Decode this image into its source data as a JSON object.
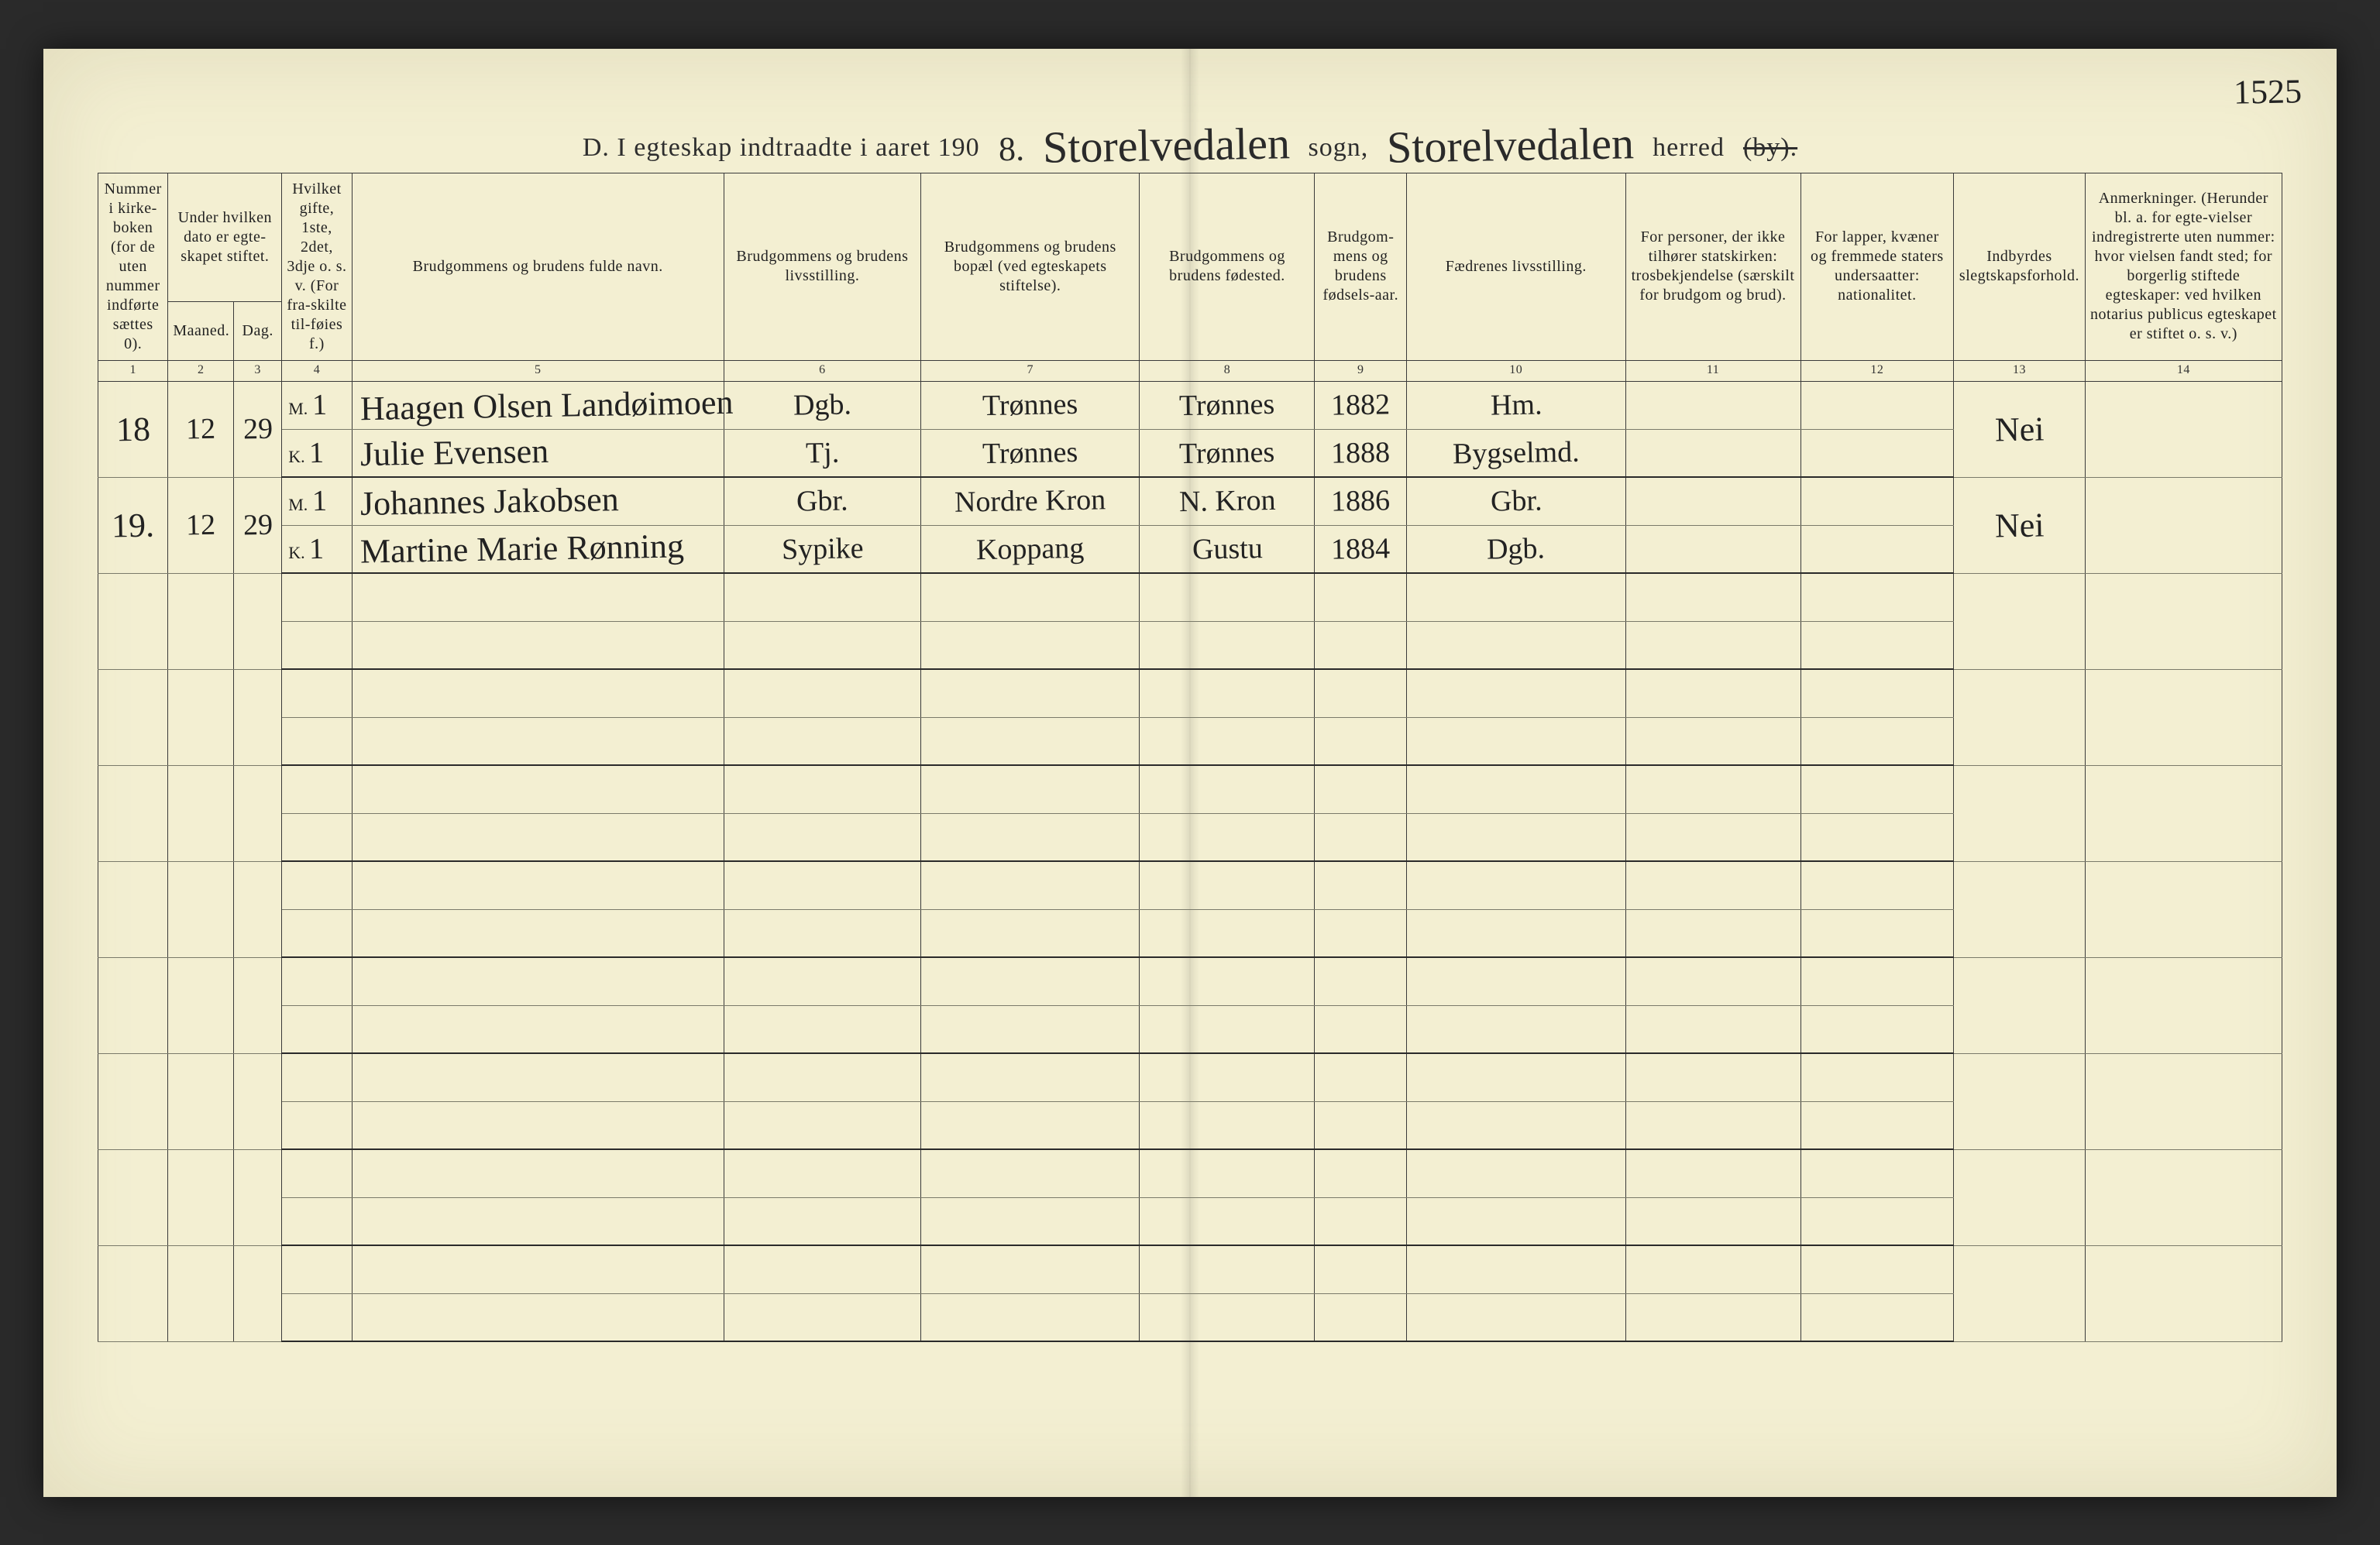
{
  "folio": "1525",
  "title": {
    "prefix": "D.  I egteskap indtraadte i aaret 190",
    "year_hand": "8.",
    "sogn_script": "Storelvedalen",
    "sogn_label": "sogn,",
    "herred_script": "Storelvedalen",
    "herred_label": "herred",
    "struck_by": "(by)."
  },
  "headers": {
    "c1": "Nummer i kirke-boken (for de uten nummer indførte sættes 0).",
    "c2a": "Under hvilken dato er egte-skapet stiftet.",
    "c2_m": "Maaned.",
    "c2_d": "Dag.",
    "c4": "Hvilket gifte, 1ste, 2det, 3dje o. s. v. (For fra-skilte til-føies f.)",
    "c5": "Brudgommens og brudens fulde navn.",
    "c6": "Brudgommens og brudens livsstilling.",
    "c7": "Brudgommens og brudens bopæl (ved egteskapets stiftelse).",
    "c8": "Brudgommens og brudens fødested.",
    "c9": "Brudgom-mens og brudens fødsels-aar.",
    "c10": "Fædrenes livsstilling.",
    "c11": "For personer, der ikke tilhører statskirken: trosbekjendelse (særskilt for brudgom og brud).",
    "c12": "For lapper, kvæner og fremmede staters undersaatter: nationalitet.",
    "c13": "Indbyrdes slegtskapsforhold.",
    "c14": "Anmerkninger. (Herunder bl. a. for egte-vielser indregistrerte uten nummer: hvor vielsen fandt sted; for borgerlig stiftede egteskaper: ved hvilken notarius publicus egteskapet er stiftet o. s. v.)"
  },
  "colnums": [
    "1",
    "2",
    "3",
    "4",
    "5",
    "6",
    "7",
    "8",
    "9",
    "10",
    "11",
    "12",
    "13",
    "14"
  ],
  "entries": [
    {
      "no": "18",
      "month": "12",
      "day": "29",
      "groom": {
        "mk": "M.",
        "gifte": "1",
        "name": "Haagen Olsen Landøimoen",
        "stilling": "Dgb.",
        "bopael": "Trønnes",
        "fodested": "Trønnes",
        "aar": "1882",
        "faedre": "Hm."
      },
      "bride": {
        "mk": "K.",
        "gifte": "1",
        "name": "Julie Evensen",
        "stilling": "Tj.",
        "bopael": "Trønnes",
        "fodested": "Trønnes",
        "aar": "1888",
        "faedre": "Bygselmd."
      },
      "slegtskap": "Nei"
    },
    {
      "no": "19.",
      "month": "12",
      "day": "29",
      "groom": {
        "mk": "M.",
        "gifte": "1",
        "name": "Johannes Jakobsen",
        "stilling": "Gbr.",
        "bopael": "Nordre Kron",
        "fodested": "N. Kron",
        "aar": "1886",
        "faedre": "Gbr."
      },
      "bride": {
        "mk": "K.",
        "gifte": "1",
        "name": "Martine Marie Rønning",
        "stilling": "Sypike",
        "bopael": "Koppang",
        "fodested": "Gustu",
        "aar": "1884",
        "faedre": "Dgb."
      },
      "slegtskap": "Nei"
    }
  ],
  "empty_pair_count": 8,
  "mk_labels": {
    "m": "M.",
    "k": "K."
  }
}
